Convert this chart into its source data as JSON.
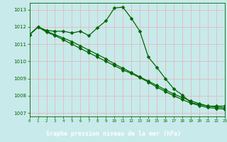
{
  "title": "Graphe pression niveau de la mer (hPa)",
  "bg_color": "#c8eaea",
  "plot_bg_color": "#c8eaea",
  "grid_color": "#e8b0b8",
  "line_color": "#006600",
  "label_bg_color": "#006600",
  "label_text_color": "#ffffff",
  "xlim": [
    0,
    23
  ],
  "ylim": [
    1006.8,
    1013.4
  ],
  "yticks": [
    1007,
    1008,
    1009,
    1010,
    1011,
    1012,
    1013
  ],
  "xticks": [
    0,
    1,
    2,
    3,
    4,
    5,
    6,
    7,
    8,
    9,
    10,
    11,
    12,
    13,
    14,
    15,
    16,
    17,
    18,
    19,
    20,
    21,
    22,
    23
  ],
  "line1_x": [
    0,
    1,
    2,
    3,
    4,
    5,
    6,
    7,
    8,
    9,
    10,
    11,
    12,
    13,
    14,
    15,
    16,
    17,
    18,
    19,
    20,
    21,
    22,
    23
  ],
  "line1_y": [
    1011.55,
    1012.0,
    1011.8,
    1011.75,
    1011.75,
    1011.65,
    1011.75,
    1011.5,
    1011.95,
    1012.35,
    1013.1,
    1013.15,
    1012.5,
    1011.75,
    1010.25,
    1009.65,
    1009.0,
    1008.4,
    1008.05,
    1007.6,
    1007.5,
    1007.4,
    1007.4,
    1007.4
  ],
  "line2_x": [
    0,
    1,
    2,
    3,
    4,
    5,
    6,
    7,
    8,
    9,
    10,
    11,
    12,
    13,
    14,
    15,
    16,
    17,
    18,
    19,
    20,
    21,
    22,
    23
  ],
  "line2_y": [
    1011.55,
    1012.0,
    1011.75,
    1011.55,
    1011.35,
    1011.15,
    1010.9,
    1010.65,
    1010.4,
    1010.15,
    1009.85,
    1009.6,
    1009.35,
    1009.1,
    1008.85,
    1008.6,
    1008.35,
    1008.1,
    1007.9,
    1007.7,
    1007.55,
    1007.4,
    1007.35,
    1007.3
  ],
  "line3_x": [
    0,
    1,
    2,
    3,
    4,
    5,
    6,
    7,
    8,
    9,
    10,
    11,
    12,
    13,
    14,
    15,
    16,
    17,
    18,
    19,
    20,
    21,
    22,
    23
  ],
  "line3_y": [
    1011.55,
    1012.0,
    1011.7,
    1011.5,
    1011.25,
    1011.0,
    1010.75,
    1010.5,
    1010.25,
    1010.0,
    1009.75,
    1009.5,
    1009.3,
    1009.05,
    1008.8,
    1008.5,
    1008.25,
    1008.0,
    1007.78,
    1007.58,
    1007.43,
    1007.32,
    1007.27,
    1007.22
  ]
}
